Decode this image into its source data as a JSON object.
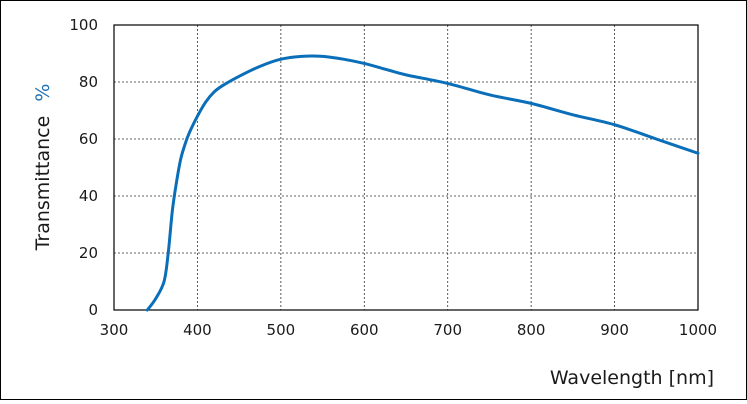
{
  "chart_data": {
    "type": "line",
    "title": "",
    "xlabel": "Wavelength [nm]",
    "ylabel": "Transmittance",
    "ylabel_unit": "%",
    "xlim": [
      300,
      1000
    ],
    "ylim": [
      0,
      100
    ],
    "x_ticks": [
      300,
      400,
      500,
      600,
      700,
      800,
      900,
      1000
    ],
    "y_ticks": [
      0,
      20,
      40,
      60,
      80,
      100
    ],
    "grid": true,
    "grid_style": "dashed",
    "line_color": "#0a6fb8",
    "series": [
      {
        "x": [
          340,
          350,
          360,
          365,
          370,
          375,
          380,
          385,
          390,
          400,
          410,
          420,
          430,
          450,
          475,
          500,
          525,
          550,
          575,
          600,
          625,
          650,
          700,
          750,
          800,
          850,
          900,
          950,
          1000
        ],
        "y": [
          0,
          4,
          10,
          20,
          35,
          45,
          53,
          58,
          62,
          68,
          73,
          76.5,
          78.7,
          82,
          85.5,
          88,
          89,
          89,
          88,
          86.5,
          84.5,
          82.5,
          79.5,
          75.5,
          72.5,
          68.5,
          65,
          60,
          55
        ]
      }
    ]
  }
}
